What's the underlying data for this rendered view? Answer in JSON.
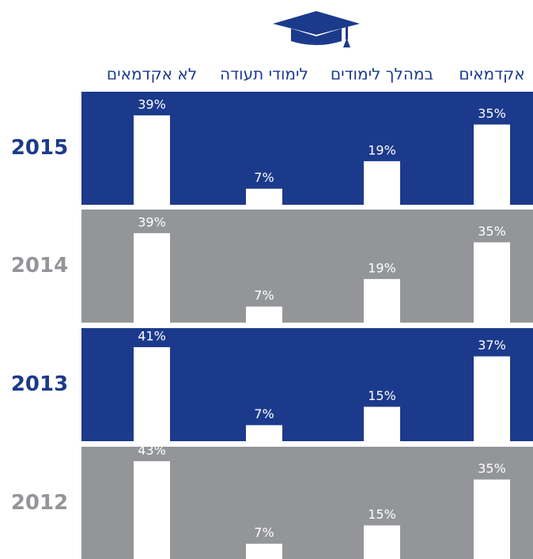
{
  "chart_data": {
    "type": "bar",
    "categories": [
      "אקדמאים",
      "במהלך לימודים",
      "לימודי תעודה",
      "לא אקדמאים"
    ],
    "bar_color": "#ffffff",
    "series": [
      {
        "name": "2015",
        "color": "#1c3a8c",
        "values": [
          35,
          19,
          7,
          39
        ],
        "value_labels": [
          "35%",
          "19%",
          "7%",
          "39%"
        ]
      },
      {
        "name": "2014",
        "color": "#939598",
        "values": [
          35,
          19,
          7,
          39
        ],
        "value_labels": [
          "35%",
          "19%",
          "7%",
          "39%"
        ]
      },
      {
        "name": "2013",
        "color": "#1c3a8c",
        "values": [
          37,
          15,
          7,
          41
        ],
        "value_labels": [
          "37%",
          "15%",
          "7%",
          "41%"
        ]
      },
      {
        "name": "2012",
        "color": "#939598",
        "values": [
          35,
          15,
          7,
          43
        ],
        "value_labels": [
          "35%",
          "15%",
          "7%",
          "43%"
        ]
      }
    ]
  }
}
